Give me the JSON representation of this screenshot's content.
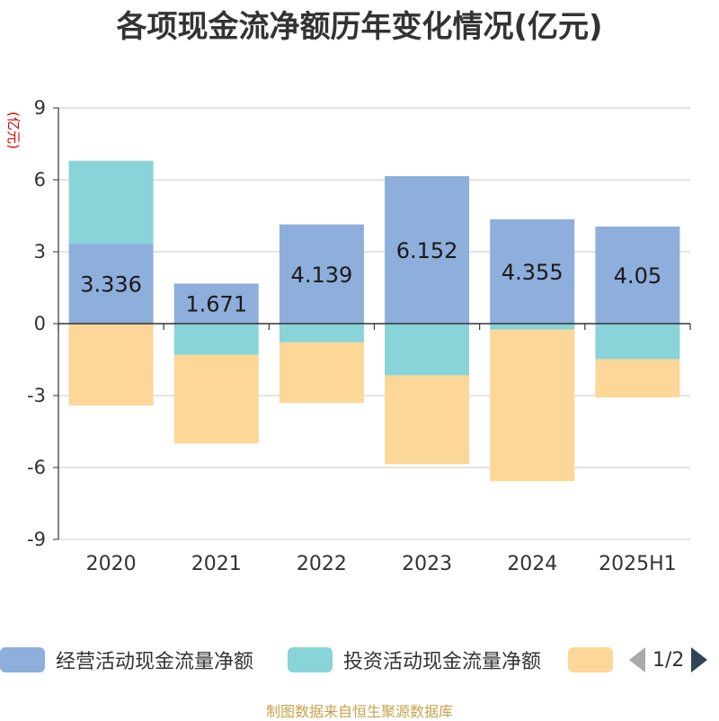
{
  "title": "各项现金流净额历年变化情况(亿元)",
  "chart_data": {
    "type": "bar",
    "stacked": true,
    "categories": [
      "2020",
      "2021",
      "2022",
      "2023",
      "2024",
      "2025H1"
    ],
    "ylabel": "(亿元)",
    "ylim": [
      -9,
      9
    ],
    "yticks": [
      9,
      6,
      3,
      0,
      -3,
      -6,
      -9
    ],
    "grid": true,
    "legend_position": "bottom",
    "series": [
      {
        "name": "经营活动现金流量净额",
        "color": "#8eaedb",
        "values": [
          3.336,
          1.671,
          4.139,
          6.152,
          4.355,
          4.05
        ],
        "labels": [
          "3.336",
          "1.671",
          "4.139",
          "6.152",
          "4.355",
          "4.05"
        ]
      },
      {
        "name": "投资活动现金流量净额",
        "color": "#88d4d8",
        "values": [
          3.46,
          -1.3,
          -0.78,
          -2.16,
          -0.25,
          -1.48
        ]
      },
      {
        "name": "",
        "color": "#fcd797",
        "values": [
          -3.42,
          -3.7,
          -2.53,
          -3.7,
          -6.32,
          -1.6
        ]
      }
    ]
  },
  "legend": {
    "items": [
      "经营活动现金流量净额",
      "投资活动现金流量净额",
      ""
    ],
    "page_indicator": "1/2"
  },
  "source_note": "制图数据来自恒生聚源数据库"
}
